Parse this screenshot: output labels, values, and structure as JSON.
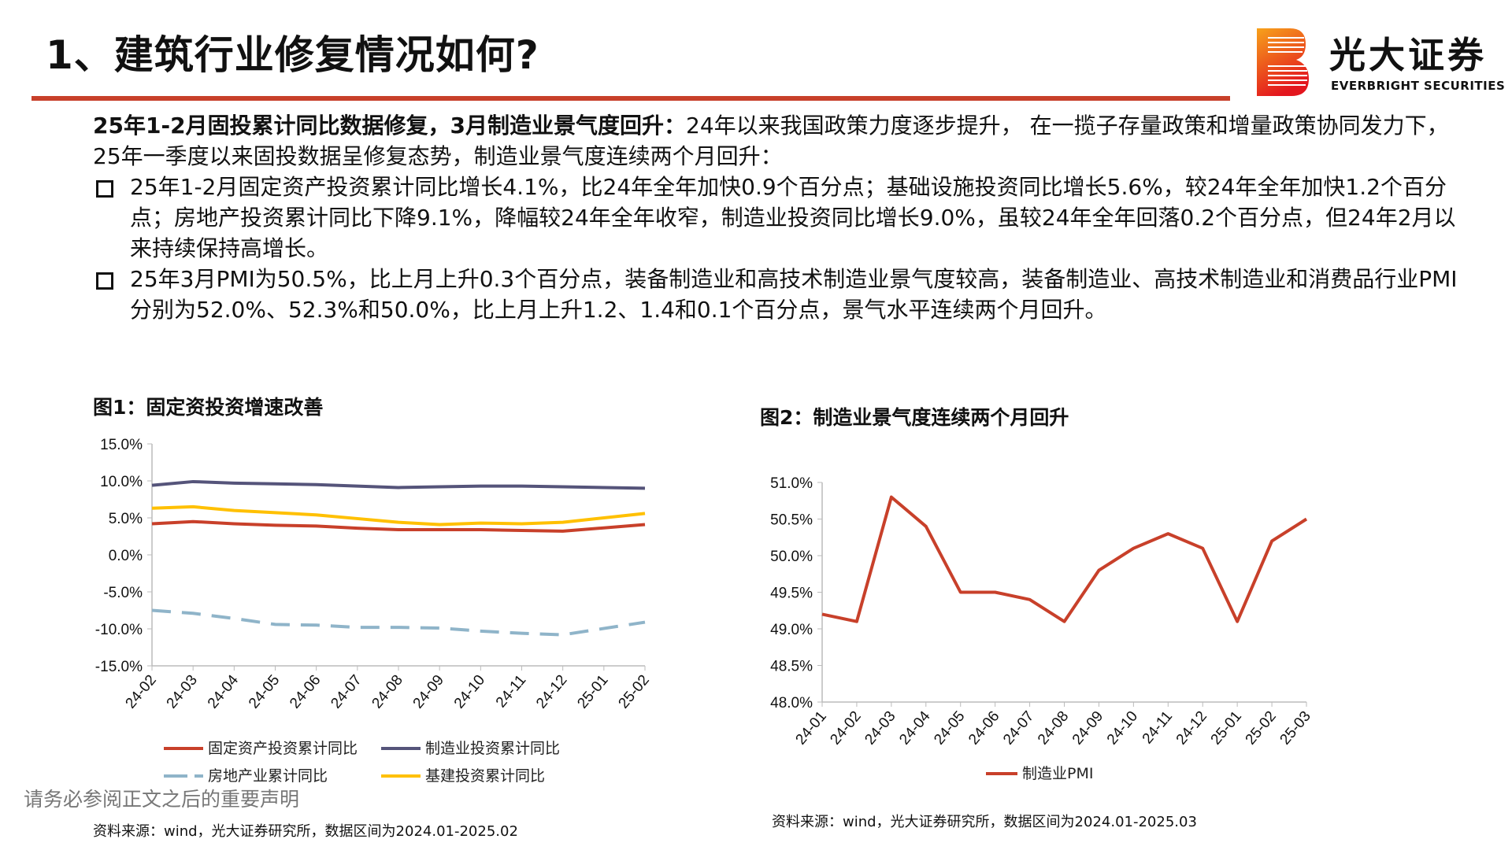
{
  "header": {
    "title": "1、建筑行业修复情况如何?",
    "brand_cn": "光大证券",
    "brand_en": "EVERBRIGHT SECURITIES",
    "accent": "#c8402a"
  },
  "body": {
    "lead_bold": "25年1-2月固投累计同比数据修复，3月制造业景气度回升：",
    "lead_text": "24年以来我国政策力度逐步提升， 在一揽子存量政策和增量政策协同发力下，25年一季度以来固投数据呈修复态势，制造业景气度连续两个月回升：",
    "bullets": [
      "25年1-2月固定资产投资累计同比增长4.1%，比24年全年加快0.9个百分点；基础设施投资同比增长5.6%，较24年全年加快1.2个百分点；房地产投资累计同比下降9.1%，降幅较24年全年收窄，制造业投资同比增长9.0%，虽较24年全年回落0.2个百分点，但24年2月以来持续保持高增长。",
      "25年3月PMI为50.5%，比上月上升0.3个百分点，装备制造业和高技术制造业景气度较高，装备制造业、高技术制造业和消费品行业PMI分别为52.0%、52.3%和50.0%，比上月上升1.2、1.4和0.1个百分点，景气水平连续两个月回升。"
    ]
  },
  "fig1": {
    "title": "图1：固定资投资增速改善",
    "source": "资料来源：wind，光大证券研究所，数据区间为2024.01-2025.02"
  },
  "fig2": {
    "title": "图2：制造业景气度连续两个月回升",
    "source": "资料来源：wind，光大证券研究所，数据区间为2024.01-2025.03"
  },
  "disclaimer": "请务必参阅正文之后的重要声明",
  "chart_data": [
    {
      "type": "line",
      "categories": [
        "24-02",
        "24-03",
        "24-04",
        "24-05",
        "24-06",
        "24-07",
        "24-08",
        "24-09",
        "24-10",
        "24-11",
        "24-12",
        "25-01",
        "25-02"
      ],
      "ylim": [
        -15,
        15
      ],
      "yticks": [
        "15.0%",
        "10.0%",
        "5.0%",
        "0.0%",
        "-5.0%",
        "-10.0%",
        "-15.0%"
      ],
      "grid": false,
      "legend_position": "bottom",
      "series": [
        {
          "name": "固定资产投资累计同比",
          "color": "#c8402a",
          "dash": false,
          "values": [
            4.2,
            4.5,
            4.2,
            4.0,
            3.9,
            3.6,
            3.4,
            3.4,
            3.4,
            3.3,
            3.2,
            null,
            4.1
          ]
        },
        {
          "name": "制造业投资累计同比",
          "color": "#55547a",
          "dash": false,
          "values": [
            9.4,
            9.9,
            9.7,
            9.6,
            9.5,
            9.3,
            9.1,
            9.2,
            9.3,
            9.3,
            9.2,
            null,
            9.0
          ]
        },
        {
          "name": "房地产业累计同比",
          "color": "#8fb4c9",
          "dash": true,
          "values": [
            -7.5,
            -7.9,
            -8.6,
            -9.4,
            -9.5,
            -9.8,
            -9.8,
            -9.9,
            -10.3,
            -10.6,
            -10.8,
            null,
            -9.1
          ]
        },
        {
          "name": "基建投资累计同比",
          "color": "#ffc000",
          "dash": false,
          "values": [
            6.3,
            6.5,
            6.0,
            5.7,
            5.4,
            4.9,
            4.4,
            4.1,
            4.3,
            4.2,
            4.4,
            null,
            5.6
          ]
        }
      ]
    },
    {
      "type": "line",
      "categories": [
        "24-01",
        "24-02",
        "24-03",
        "24-04",
        "24-05",
        "24-06",
        "24-07",
        "24-08",
        "24-09",
        "24-10",
        "24-11",
        "24-12",
        "25-01",
        "25-02",
        "25-03"
      ],
      "ylim": [
        48,
        51
      ],
      "yticks": [
        "51.0%",
        "50.5%",
        "50.0%",
        "49.5%",
        "49.0%",
        "48.5%",
        "48.0%"
      ],
      "grid": false,
      "legend_position": "bottom",
      "series": [
        {
          "name": "制造业PMI",
          "color": "#c8402a",
          "dash": false,
          "values": [
            49.2,
            49.1,
            50.8,
            50.4,
            49.5,
            49.5,
            49.4,
            49.1,
            49.8,
            50.1,
            50.3,
            50.1,
            49.1,
            50.2,
            50.5
          ]
        }
      ]
    }
  ]
}
